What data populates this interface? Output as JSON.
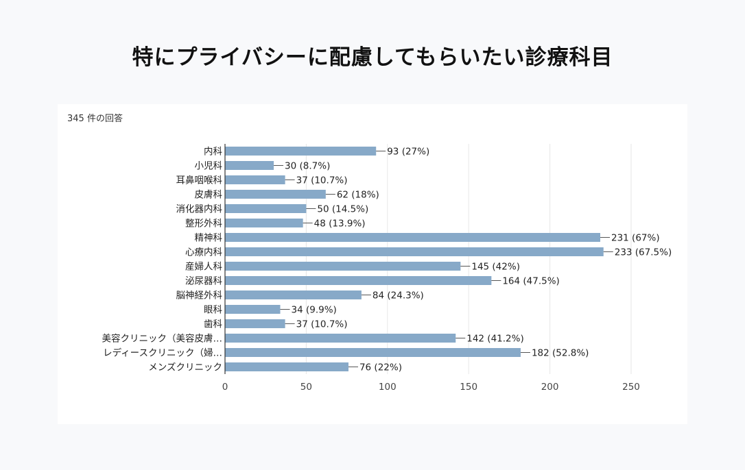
{
  "page": {
    "title": "特にプライバシーに配慮してもらいたい診療科目",
    "response_count": "345 件の回答"
  },
  "colors": {
    "bar": "#87a9c8",
    "gridline": "#e6e6e6",
    "axis": "#333333",
    "leader": "#555555"
  },
  "chart_data": {
    "type": "bar",
    "orientation": "horizontal",
    "title": "特にプライバシーに配慮してもらいたい診療科目",
    "xlim": [
      0,
      250
    ],
    "xticks": [
      0,
      50,
      100,
      150,
      200,
      250
    ],
    "xtick_labels": [
      "0",
      "50",
      "100",
      "150",
      "200",
      "250"
    ],
    "gridlines": true,
    "categories": [
      "内科",
      "小児科",
      "耳鼻咽喉科",
      "皮膚科",
      "消化器内科",
      "整形外科",
      "精神科",
      "心療内科",
      "産婦人科",
      "泌尿器科",
      "脳神経外科",
      "眼科",
      "歯科",
      "美容クリニック（美容皮膚…",
      "レディースクリニック（婦…",
      "メンズクリニック"
    ],
    "values": [
      93,
      30,
      37,
      62,
      50,
      48,
      231,
      233,
      145,
      164,
      84,
      34,
      37,
      142,
      182,
      76
    ],
    "data_labels": [
      "93 (27%)",
      "30 (8.7%)",
      "37 (10.7%)",
      "62 (18%)",
      "50 (14.5%)",
      "48 (13.9%)",
      "231 (67%)",
      "233 (67.5%)",
      "145 (42%)",
      "164 (47.5%)",
      "84 (24.3%)",
      "34 (9.9%)",
      "37 (10.7%)",
      "142 (41.2%)",
      "182 (52.8%)",
      "76 (22%)"
    ]
  }
}
